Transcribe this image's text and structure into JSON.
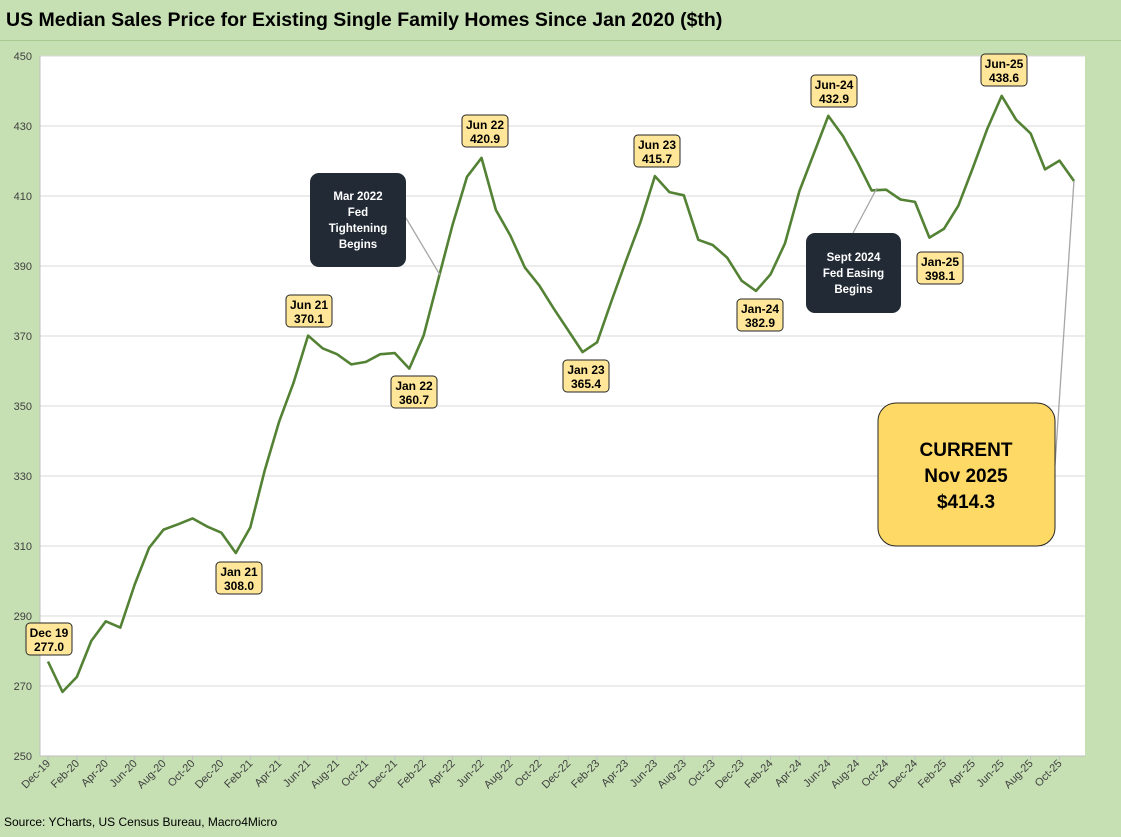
{
  "title": "US Median Sales Price for Existing Single Family Homes Since Jan 2020 ($th)",
  "source": "Source: YCharts, US Census Bureau, Macro4Micro",
  "colors": {
    "background": "#c6e0b4",
    "line": "#548235",
    "callout_fill": "#ffe699",
    "dark_box": "#222a35",
    "grid": "#d9d9d9"
  },
  "chart_data": {
    "type": "line",
    "title": "US Median Sales Price for Existing Single Family Homes Since Jan 2020 ($th)",
    "xlabel": "",
    "ylabel": "",
    "ylim": [
      250,
      450
    ],
    "yticks": [
      250,
      270,
      290,
      310,
      330,
      350,
      370,
      390,
      410,
      430,
      450
    ],
    "grid": true,
    "legend": "none",
    "x": [
      "Dec-19",
      "Jan-20",
      "Feb-20",
      "Mar-20",
      "Apr-20",
      "May-20",
      "Jun-20",
      "Jul-20",
      "Aug-20",
      "Sep-20",
      "Oct-20",
      "Nov-20",
      "Dec-20",
      "Jan-21",
      "Feb-21",
      "Mar-21",
      "Apr-21",
      "May-21",
      "Jun-21",
      "Jul-21",
      "Aug-21",
      "Sep-21",
      "Oct-21",
      "Nov-21",
      "Dec-21",
      "Jan-22",
      "Feb-22",
      "Mar-22",
      "Apr-22",
      "May-22",
      "Jun-22",
      "Jul-22",
      "Aug-22",
      "Sep-22",
      "Oct-22",
      "Nov-22",
      "Dec-22",
      "Jan-23",
      "Feb-23",
      "Mar-23",
      "Apr-23",
      "May-23",
      "Jun-23",
      "Jul-23",
      "Aug-23",
      "Sep-23",
      "Oct-23",
      "Nov-23",
      "Dec-23",
      "Jan-24",
      "Feb-24",
      "Mar-24",
      "Apr-24",
      "May-24",
      "Jun-24",
      "Jul-24",
      "Aug-24",
      "Sep-24",
      "Oct-24",
      "Nov-24",
      "Dec-24",
      "Jan-25",
      "Feb-25",
      "Mar-25",
      "Apr-25",
      "May-25",
      "Jun-25",
      "Jul-25",
      "Aug-25",
      "Sep-25",
      "Oct-25",
      "Nov-25"
    ],
    "xtick_labels": [
      "Dec-19",
      "Feb-20",
      "Apr-20",
      "Jun-20",
      "Aug-20",
      "Oct-20",
      "Dec-20",
      "Feb-21",
      "Apr-21",
      "Jun-21",
      "Aug-21",
      "Oct-21",
      "Dec-21",
      "Feb-22",
      "Apr-22",
      "Jun-22",
      "Aug-22",
      "Oct-22",
      "Dec-22",
      "Feb-23",
      "Apr-23",
      "Jun-23",
      "Aug-23",
      "Oct-23",
      "Dec-23",
      "Feb-24",
      "Apr-24",
      "Jun-24",
      "Aug-24",
      "Oct-24",
      "Dec-24",
      "Feb-25",
      "Apr-25",
      "Jun-25",
      "Aug-25",
      "Oct-25"
    ],
    "series": [
      {
        "values": [
          277.0,
          268.3,
          272.6,
          282.9,
          288.5,
          286.7,
          299.0,
          309.5,
          314.7,
          316.2,
          317.9,
          315.6,
          313.8,
          308.0,
          315.3,
          331.7,
          345.6,
          356.7,
          370.1,
          366.5,
          364.8,
          361.9,
          362.6,
          364.8,
          365.1,
          360.7,
          370.2,
          386.0,
          401.8,
          415.5,
          420.9,
          406.0,
          398.7,
          389.6,
          384.4,
          377.8,
          371.6,
          365.4,
          368.2,
          380.0,
          391.5,
          402.5,
          415.7,
          411.1,
          410.2,
          397.5,
          396.0,
          392.4,
          385.8,
          382.9,
          387.6,
          396.4,
          411.4,
          422.1,
          432.9,
          427.2,
          419.8,
          411.6,
          411.8,
          409.0,
          408.3,
          398.1,
          400.6,
          407.2,
          418.0,
          429.2,
          438.6,
          431.8,
          427.9,
          417.6,
          420.1,
          414.3
        ]
      }
    ],
    "annotations": [
      {
        "label": "Dec 19",
        "value": "277.0"
      },
      {
        "label": "Jan 21",
        "value": "308.0"
      },
      {
        "label": "Jun 21",
        "value": "370.1"
      },
      {
        "label": "Jan 22",
        "value": "360.7"
      },
      {
        "label": "Jun 22",
        "value": "420.9"
      },
      {
        "label": "Jan 23",
        "value": "365.4"
      },
      {
        "label": "Jun 23",
        "value": "415.7"
      },
      {
        "label": "Jan-24",
        "value": "382.9"
      },
      {
        "label": "Jun-24",
        "value": "432.9"
      },
      {
        "label": "Jan-25",
        "value": "398.1"
      },
      {
        "label": "Jun-25",
        "value": "438.6"
      }
    ],
    "notes": [
      {
        "lines": [
          "Mar 2022",
          "Fed",
          "Tightening",
          "Begins"
        ]
      },
      {
        "lines": [
          "Sept 2024",
          "Fed Easing",
          "Begins"
        ]
      }
    ],
    "current": {
      "lines": [
        "CURRENT",
        "Nov 2025",
        "$414.3"
      ]
    }
  }
}
